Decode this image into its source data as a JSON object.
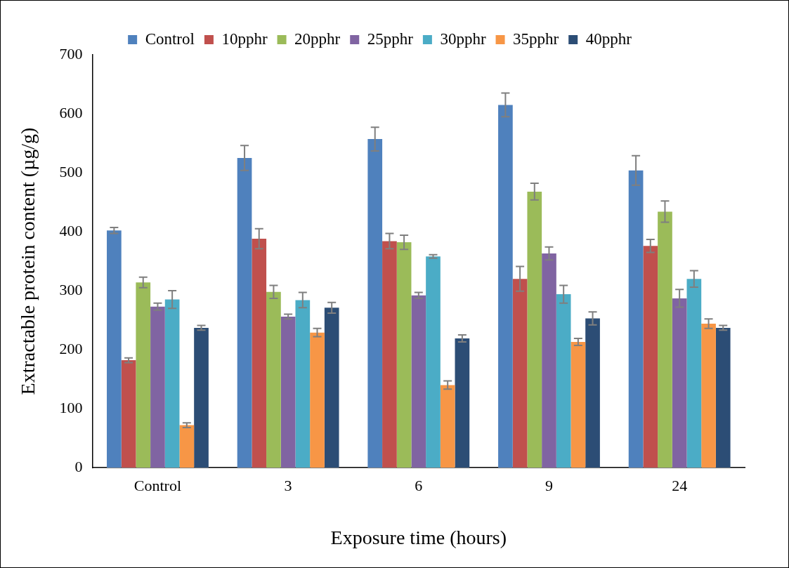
{
  "chart_data": {
    "type": "bar",
    "xlabel": "Exposure time (hours)",
    "ylabel": "Extractable protein content (µg/g)",
    "categories": [
      "Control",
      "3",
      "6",
      "9",
      "24"
    ],
    "series": [
      {
        "name": "Control",
        "color": "#4f81bd",
        "values": [
          402,
          525,
          557,
          615,
          504
        ],
        "errors": [
          5,
          21,
          20,
          20,
          25
        ]
      },
      {
        "name": "10pphr",
        "color": "#c0504d",
        "values": [
          182,
          388,
          384,
          320,
          376
        ],
        "errors": [
          4,
          17,
          13,
          21,
          11
        ]
      },
      {
        "name": "20pphr",
        "color": "#9bbb59",
        "values": [
          314,
          298,
          382,
          468,
          434
        ],
        "errors": [
          9,
          11,
          12,
          14,
          18
        ]
      },
      {
        "name": "25pphr",
        "color": "#8064a2",
        "values": [
          273,
          256,
          292,
          363,
          287
        ],
        "errors": [
          6,
          4,
          5,
          11,
          15
        ]
      },
      {
        "name": "30pphr",
        "color": "#4bacc6",
        "values": [
          285,
          284,
          358,
          294,
          320
        ],
        "errors": [
          15,
          13,
          3,
          15,
          14
        ]
      },
      {
        "name": "35pphr",
        "color": "#f79646",
        "values": [
          72,
          229,
          140,
          213,
          244
        ],
        "errors": [
          4,
          7,
          7,
          6,
          8
        ]
      },
      {
        "name": "40pphr",
        "color": "#2c4d75",
        "values": [
          237,
          271,
          219,
          253,
          237
        ],
        "errors": [
          4,
          9,
          6,
          11,
          4
        ]
      }
    ],
    "ylim": [
      0,
      700
    ],
    "yticks": [
      0,
      100,
      200,
      300,
      400,
      500,
      600,
      700
    ],
    "grid": false,
    "legend": "top"
  }
}
